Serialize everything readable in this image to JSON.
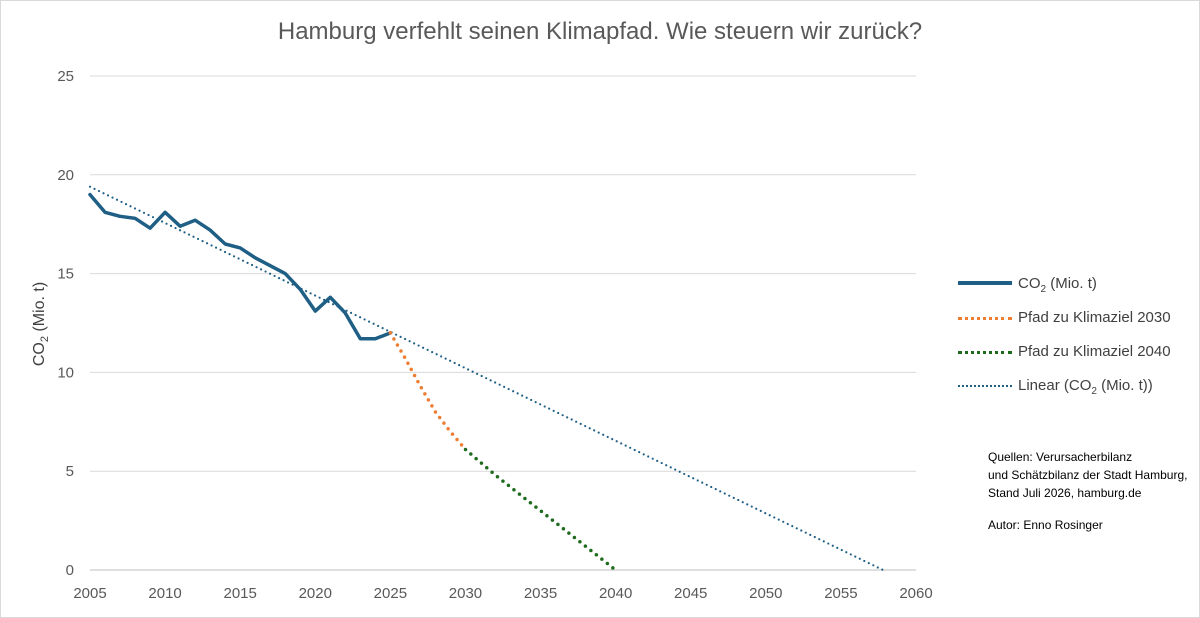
{
  "chart_data": {
    "type": "line",
    "title": "Hamburg verfehlt seinen Klimapfad. Wie steuern wir zurück?",
    "ylabel_main": "CO",
    "ylabel_sub": "2",
    "ylabel_suffix": " (Mio. t)",
    "xlim": [
      2005,
      2060
    ],
    "ylim": [
      0,
      25
    ],
    "x_ticks": [
      "2005",
      "2010",
      "2015",
      "2020",
      "2025",
      "2030",
      "2035",
      "2040",
      "2045",
      "2050",
      "2055",
      "2060"
    ],
    "y_ticks": [
      "0",
      "5",
      "10",
      "15",
      "20",
      "25"
    ],
    "grid": "horizontal",
    "legend_position": "right",
    "series": [
      {
        "name_main": "CO",
        "name_sub": "2",
        "name_suffix": " (Mio. t)",
        "color": "#1f5f85",
        "style": "solid",
        "x": [
          2005,
          2006,
          2007,
          2008,
          2009,
          2010,
          2011,
          2012,
          2013,
          2014,
          2015,
          2016,
          2017,
          2018,
          2019,
          2020,
          2021,
          2022,
          2023,
          2024,
          2025
        ],
        "y": [
          19.0,
          18.1,
          17.9,
          17.8,
          17.3,
          18.1,
          17.4,
          17.7,
          17.2,
          16.5,
          16.3,
          15.8,
          15.4,
          15.0,
          14.2,
          13.1,
          13.8,
          13.0,
          11.7,
          11.7,
          12.0
        ]
      },
      {
        "name_main": "Pfad zu Klimaziel 2030",
        "name_sub": "",
        "name_suffix": "",
        "color": "#ed7d31",
        "style": "dotted",
        "x": [
          2025,
          2026,
          2027,
          2028,
          2029,
          2030
        ],
        "y": [
          12.0,
          10.7,
          9.3,
          8.0,
          7.0,
          6.1
        ]
      },
      {
        "name_main": "Pfad zu Klimaziel 2040",
        "name_sub": "",
        "name_suffix": "",
        "color": "#1e6b1e",
        "style": "dotted",
        "x": [
          2030,
          2032,
          2034,
          2036,
          2038,
          2040
        ],
        "y": [
          6.1,
          4.8,
          3.6,
          2.4,
          1.2,
          0.0
        ]
      },
      {
        "name_main": "Linear (CO",
        "name_sub": "2",
        "name_suffix": " (Mio. t))",
        "color": "#1f5f85",
        "style": "dotted",
        "x": [
          2005,
          2057.8
        ],
        "y": [
          19.4,
          0.0
        ]
      }
    ]
  },
  "source_note": {
    "line1": "Quellen: Verursacherbilanz",
    "line2": "und Schätzbilanz der Stadt Hamburg,",
    "line3": "Stand  Juli 2026, hamburg.de",
    "author": "Autor: Enno Rosinger"
  }
}
